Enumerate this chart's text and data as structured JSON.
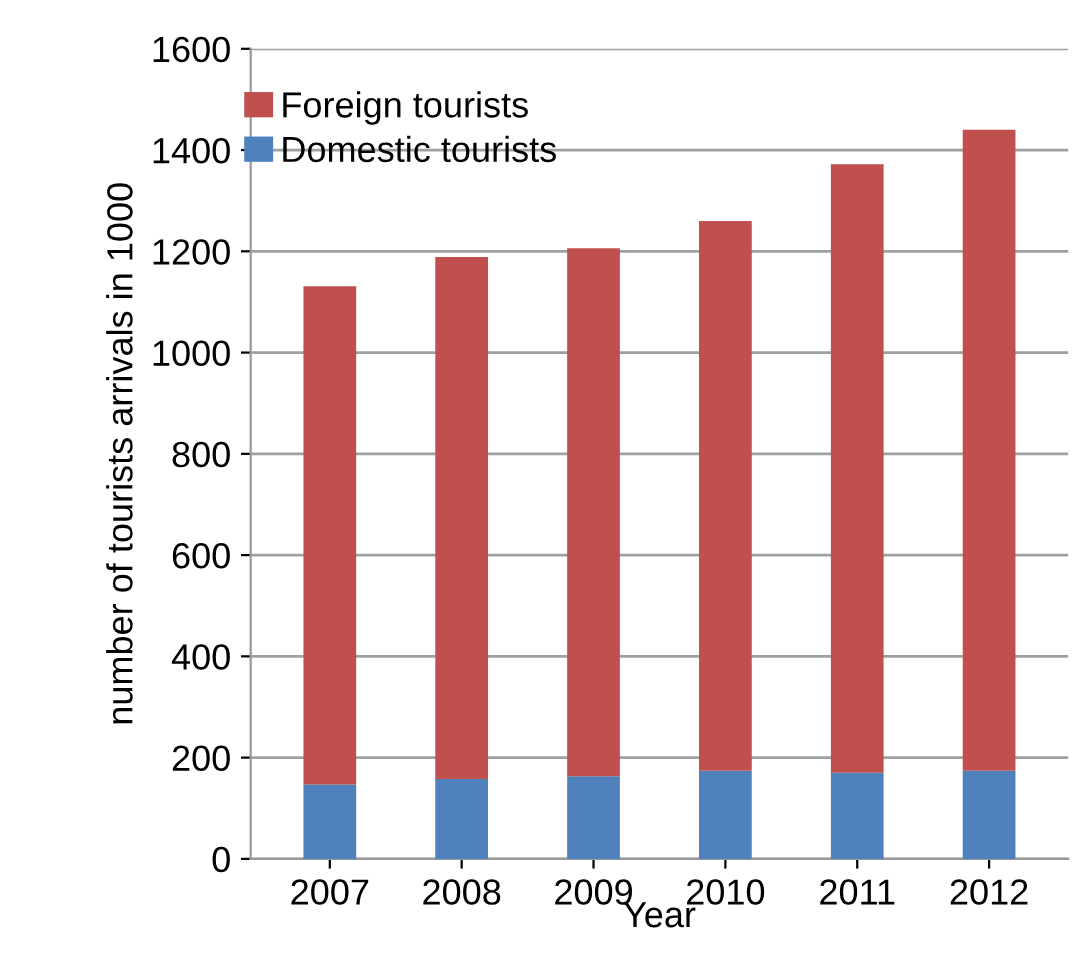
{
  "chart_data": {
    "type": "bar",
    "stacked": true,
    "xlabel": "Year",
    "ylabel": "number of tourists arrivals in 1000",
    "categories": [
      "2007",
      "2008",
      "2009",
      "2010",
      "2011",
      "2012"
    ],
    "series": [
      {
        "name": "Domestic tourists",
        "color": "#4f81bd",
        "values": [
          147,
          158,
          163,
          174,
          170,
          174
        ]
      },
      {
        "name": "Foreign tourists",
        "color": "#c0504d",
        "values": [
          984,
          1031,
          1043,
          1086,
          1202,
          1266
        ]
      }
    ],
    "ylim": [
      0,
      1600
    ],
    "yticks": [
      0,
      200,
      400,
      600,
      800,
      1000,
      1200,
      1400,
      1600
    ],
    "grid": "y",
    "legend": "top left"
  }
}
